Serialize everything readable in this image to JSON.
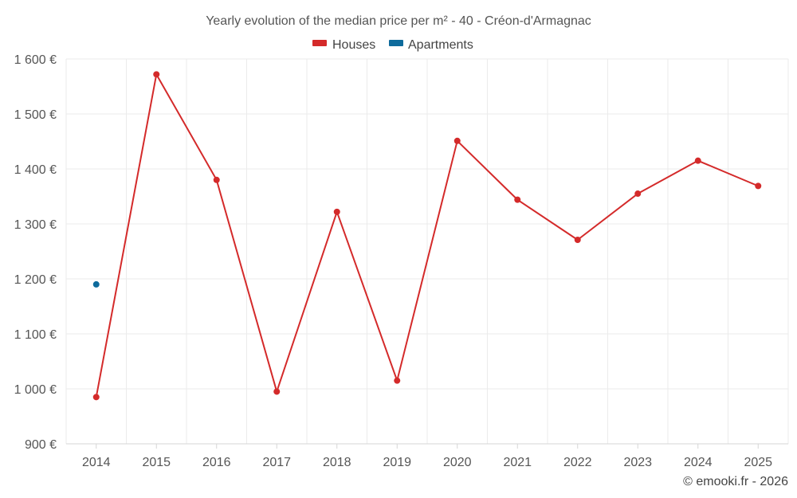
{
  "chart_data": {
    "type": "line",
    "title": "Yearly evolution of the median price per m² - 40 - Créon-d'Armagnac",
    "categories": [
      "2014",
      "2015",
      "2016",
      "2017",
      "2018",
      "2019",
      "2020",
      "2021",
      "2022",
      "2023",
      "2024",
      "2025"
    ],
    "series": [
      {
        "name": "Houses",
        "color": "#d42a2a",
        "values": [
          985,
          1572,
          1380,
          995,
          1322,
          1015,
          1451,
          1344,
          1271,
          1355,
          1415,
          1369
        ]
      },
      {
        "name": "Apartments",
        "color": "#0e6b9c",
        "values": [
          1190,
          null,
          null,
          null,
          null,
          null,
          null,
          null,
          null,
          null,
          null,
          null
        ]
      }
    ],
    "ylim": [
      900,
      1600
    ],
    "yticks": [
      900,
      1000,
      1100,
      1200,
      1300,
      1400,
      1500,
      1600
    ],
    "ytick_labels": [
      "900 €",
      "1 000 €",
      "1 100 €",
      "1 200 €",
      "1 300 €",
      "1 400 €",
      "1 500 €",
      "1 600 €"
    ],
    "xlabel": "",
    "ylabel": "",
    "grid": true,
    "legend_position": "top-center"
  },
  "credit": "© emooki.fr - 2026"
}
